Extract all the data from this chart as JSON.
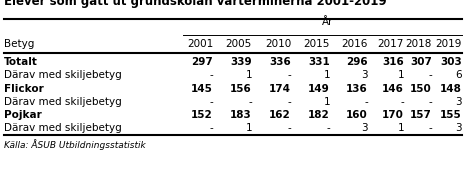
{
  "title": "Elever som gått ut grundskolan vårterminerna 2001-2019",
  "col_header_group": "År",
  "col_header_group_cols": [
    "2001",
    "2005",
    "2010",
    "2015",
    "2016",
    "2017",
    "2018",
    "2019"
  ],
  "row_label_header": "Betyg",
  "rows": [
    {
      "label": "Totalt",
      "bold": true,
      "values": [
        "297",
        "339",
        "336",
        "331",
        "296",
        "316",
        "307",
        "303"
      ]
    },
    {
      "label": "Därav med skiljebetyg",
      "bold": false,
      "values": [
        "-",
        "1",
        "-",
        "1",
        "3",
        "1",
        "-",
        "6"
      ]
    },
    {
      "label": "Flickor",
      "bold": true,
      "values": [
        "145",
        "156",
        "174",
        "149",
        "136",
        "146",
        "150",
        "148"
      ]
    },
    {
      "label": "Därav med skiljebetyg",
      "bold": false,
      "values": [
        "-",
        "-",
        "-",
        "1",
        "-",
        "-",
        "-",
        "3"
      ]
    },
    {
      "label": "Pojkar",
      "bold": true,
      "values": [
        "152",
        "183",
        "162",
        "182",
        "160",
        "170",
        "157",
        "155"
      ]
    },
    {
      "label": "Därav med skiljebetyg",
      "bold": false,
      "values": [
        "-",
        "1",
        "-",
        "-",
        "3",
        "1",
        "-",
        "3"
      ]
    }
  ],
  "footer": "Källa: ÅSUB Utbildningsstatistik",
  "background_color": "#ffffff",
  "line_color": "#000000",
  "text_color": "#000000",
  "title_fontsize": 8.5,
  "table_fontsize": 7.5,
  "footer_fontsize": 6.5
}
